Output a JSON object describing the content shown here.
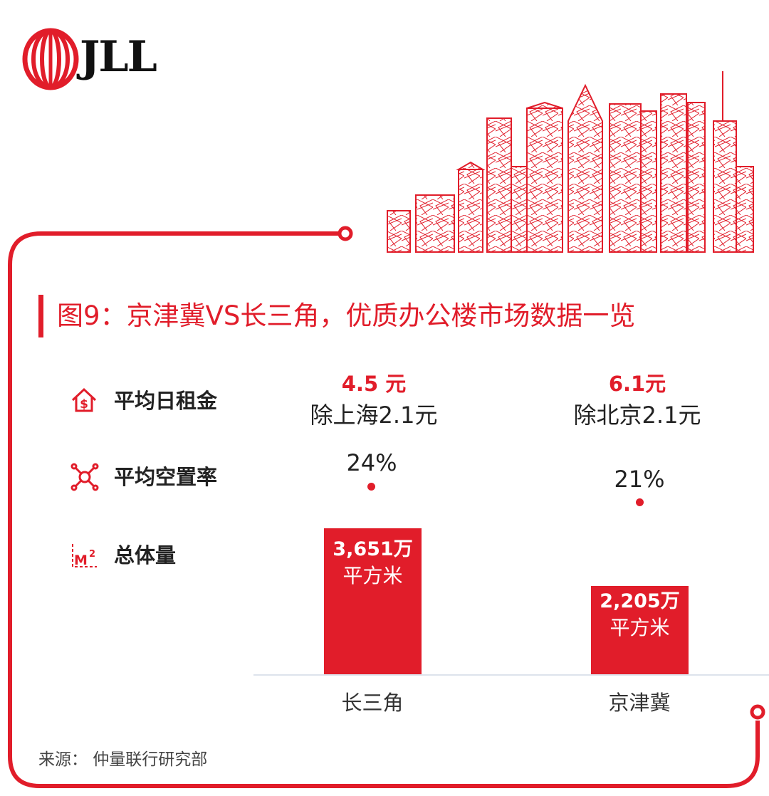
{
  "brand": {
    "logo_text": "JLL"
  },
  "title": "图9：京津冀VS长三角，优质办公楼市场数据一览",
  "metrics": {
    "rent": {
      "label": "平均日租金",
      "icon": "dollar-house-icon"
    },
    "vacancy": {
      "label": "平均空置率",
      "icon": "network-icon"
    },
    "volume": {
      "label": "总体量",
      "icon": "square-meter-icon"
    }
  },
  "chart_data": {
    "type": "bar",
    "categories": [
      "长三角",
      "京津冀"
    ],
    "series": [
      {
        "values": [
          3651,
          2205
        ]
      }
    ],
    "rent": [
      {
        "value": "4.5 元",
        "note": "除上海2.1元"
      },
      {
        "value": "6.1元",
        "note": "除北京2.1元"
      }
    ],
    "vacancy": [
      "24%",
      "21%"
    ],
    "bar_labels": [
      {
        "line1": "3,651万",
        "line2": "平方米"
      },
      {
        "line1": "2,205万",
        "line2": "平方米"
      }
    ]
  },
  "source": "来源：  仲量联行研究部",
  "colors": {
    "accent": "#e11d2a",
    "text": "#222222",
    "baseline": "#dde3ec"
  }
}
